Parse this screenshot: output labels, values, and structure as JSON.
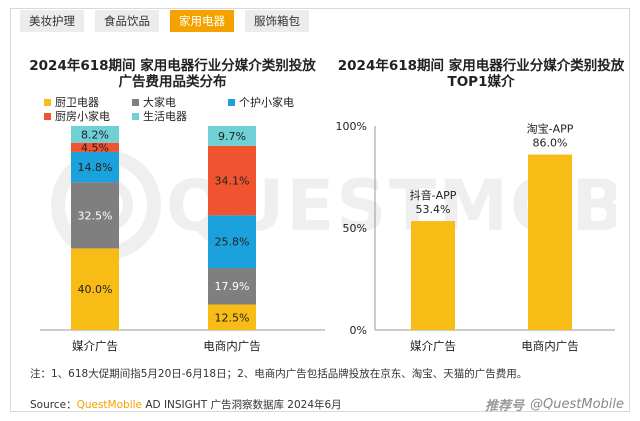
{
  "tabs": [
    {
      "label": "美妆护理",
      "active": false
    },
    {
      "label": "食品饮品",
      "active": false
    },
    {
      "label": "家用电器",
      "active": true
    },
    {
      "label": "服饰箱包",
      "active": false
    }
  ],
  "watermark_text": "QUESTMOBILE",
  "chart_data": [
    {
      "type": "bar",
      "stacked": true,
      "title": "2024年618期间 家用电器行业分媒介类别投放广告费用品类分布",
      "title_lines": [
        "2024年618期间 家用电器行业分媒介类别投放",
        "广告费用品类分布"
      ],
      "categories": [
        "媒介广告",
        "电商内广告"
      ],
      "ylim": [
        0,
        100
      ],
      "legend_position": "top-left",
      "series": [
        {
          "name": "厨卫电器",
          "color": "#f8bc16",
          "values": [
            40.0,
            12.5
          ],
          "labels": [
            "40.0%",
            "12.5%"
          ]
        },
        {
          "name": "大家电",
          "color": "#7f7f7f",
          "values": [
            32.5,
            17.9
          ],
          "labels": [
            "32.5%",
            "17.9%"
          ]
        },
        {
          "name": "个护小家电",
          "color": "#1ba2dc",
          "values": [
            14.8,
            25.8
          ],
          "labels": [
            "14.8%",
            "25.8%"
          ]
        },
        {
          "name": "厨房小家电",
          "color": "#f0532f",
          "values": [
            4.5,
            34.1
          ],
          "labels": [
            "4.5%",
            "34.1%"
          ]
        },
        {
          "name": "生活电器",
          "color": "#6fd0d6",
          "values": [
            8.2,
            9.7
          ],
          "labels": [
            "8.2%",
            "9.7%"
          ]
        }
      ]
    },
    {
      "type": "bar",
      "title": "2024年618期间 家用电器行业分媒介类别投放TOP1媒介",
      "title_lines": [
        "2024年618期间 家用电器行业分媒介类别投放",
        "TOP1媒介"
      ],
      "categories": [
        "媒介广告",
        "电商内广告"
      ],
      "ylim": [
        0,
        100
      ],
      "yticks": [
        "0%",
        "50%",
        "100%"
      ],
      "bar_color": "#f8bc16",
      "series": [
        {
          "values": [
            53.4,
            86.0
          ]
        }
      ],
      "bar_labels": [
        {
          "name": "抖音-APP",
          "value_label": "53.4%"
        },
        {
          "name": "淘宝-APP",
          "value_label": "86.0%"
        }
      ]
    }
  ],
  "note": "注：1、618大促期间指5月20日-6月18日；2、电商内广告包括品牌投放在京东、淘宝、天猫的广告费用。",
  "source": {
    "prefix": "Source：",
    "brand": "QuestMobile",
    "rest": " AD INSIGHT 广告洞察数据库 2024年6月"
  },
  "footer_brand": {
    "mark": "推荐号",
    "text": "@QuestMobile"
  }
}
